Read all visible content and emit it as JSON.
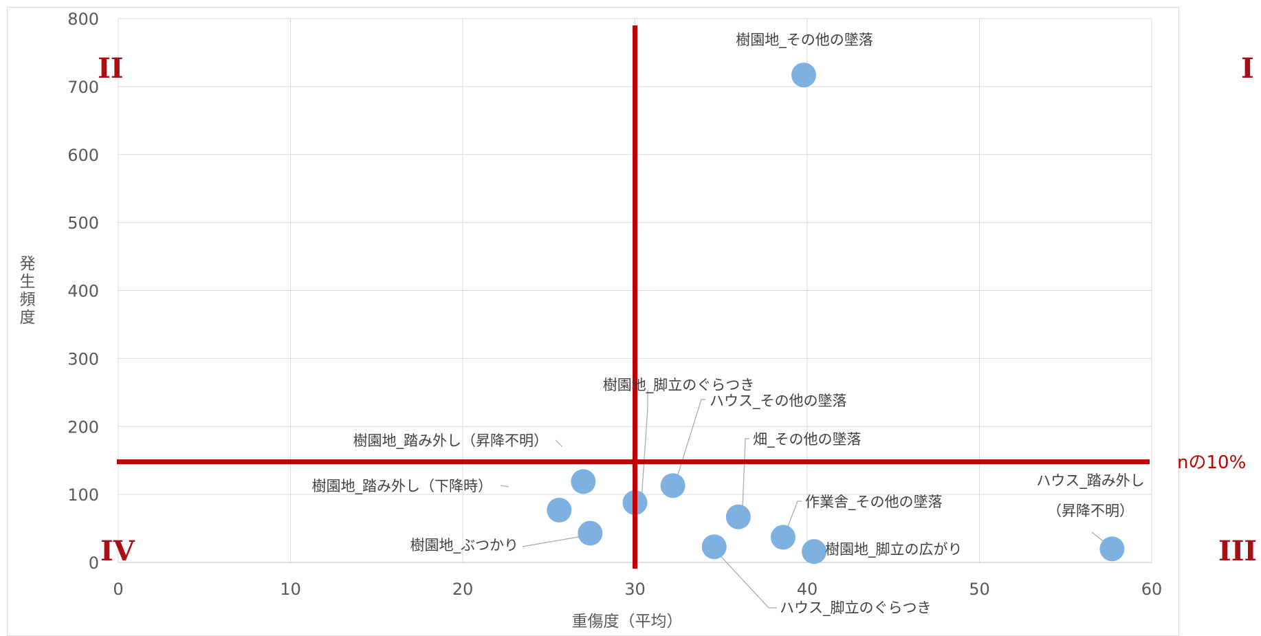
{
  "chart_data": {
    "type": "scatter",
    "xlabel": "重傷度（平均）",
    "ylabel": "発生頻度",
    "xlim": [
      0,
      60
    ],
    "ylim": [
      0,
      800
    ],
    "x_ticks": [
      "0",
      "10",
      "20",
      "30",
      "40",
      "50",
      "60"
    ],
    "y_ticks": [
      "0",
      "100",
      "200",
      "300",
      "400",
      "500",
      "600",
      "700",
      "800"
    ],
    "grid": true,
    "marker_color": "#7eb0e0",
    "reference_color": "#c00000",
    "quadrant_color": "#a50f15",
    "reference_lines": {
      "vertical_x": 30,
      "horizontal_y": 148,
      "horizontal_label": "nの10%"
    },
    "quadrant_labels": [
      "I",
      "II",
      "III",
      "IV"
    ],
    "points": [
      {
        "label": "樹園地_その他の墜落",
        "x": 39.8,
        "y": 717
      },
      {
        "label": "樹園地_踏み外し（昇降不明）",
        "x": 27.0,
        "y": 119
      },
      {
        "label": "樹園地_踏み外し（下降時）",
        "x": 25.6,
        "y": 77
      },
      {
        "label": "樹園地_ぶつかり",
        "x": 27.4,
        "y": 43
      },
      {
        "label": "樹園地_脚立のぐらつき",
        "x": 30.0,
        "y": 88
      },
      {
        "label": "ハウス_その他の墜落",
        "x": 32.2,
        "y": 113
      },
      {
        "label": "畑_その他の墜落",
        "x": 36.0,
        "y": 67
      },
      {
        "label": "ハウス_脚立のぐらつき",
        "x": 34.6,
        "y": 23
      },
      {
        "label": "作業舎_その他の墜落",
        "x": 38.6,
        "y": 37
      },
      {
        "label": "樹園地_脚立の広がり",
        "x": 40.4,
        "y": 16
      },
      {
        "label": "ハウス_踏み外し（昇降不明）",
        "label_lines": [
          "ハウス_踏み外し",
          "（昇降不明）"
        ],
        "x": 57.7,
        "y": 20
      }
    ]
  }
}
